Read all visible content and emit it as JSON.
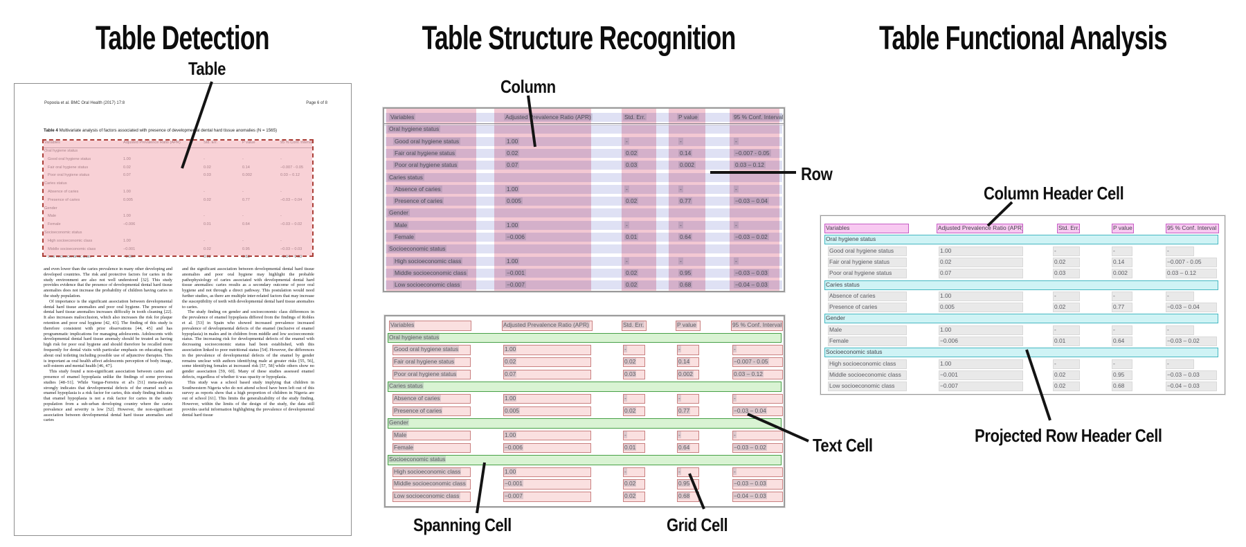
{
  "titles": {
    "detection": "Table Detection",
    "structure": "Table Structure Recognition",
    "functional": "Table Functional Analysis"
  },
  "callouts": {
    "table": "Table",
    "column": "Column",
    "row": "Row",
    "spanning_cell": "Spanning Cell",
    "grid_cell": "Grid Cell",
    "text_cell": "Text Cell",
    "column_header_cell": "Column Header Cell",
    "projected_row_header_cell": "Projected Row Header Cell"
  },
  "document": {
    "header_left": "Popoola et al. BMC Oral Health  (2017) 17:8",
    "header_right": "Page 6 of 8",
    "caption_label": "Table 4",
    "caption_text": " Multivariate analysis of factors associated with presence of developmental dental hard tissue anomalies (N = 1565)",
    "body_left": [
      "and even lower than the caries prevalence in many other developing and developed countries. The risk and protective factors for caries in the study environment are also not well understood [32]. This study provides evidence that the presence of developmental dental hard tissue anomalies does not increase the probability of children having caries in the study population.",
      "Of importance is the significant association between developmental dental hard tissue anomalies and poor oral hygiene. The presence of dental hard tissue anomalies increases difficulty in tooth cleaning [22]. It also increases malocclusion, which also increases the risk for plaque retention and poor oral hygiene [42, 43]. The finding of this study is therefore consistent with prior observations [44, 45] and has programmatic implications for managing adolescents. Adolescents with developmental dental hard tissue anomaly should be treated as having high risk for poor oral hygiene and should therefore be recalled more frequently for dental visits with particular emphasis on educating them about oral toileting including possible use of adjunctive therapies. This is important as oral health affect adolescents perception of body image, self-esteem and mental health [46, 47].",
      "This study found a non-significant association between caries and presence of enamel hypoplasia unlike the findings of some previous studies [48–51]. While Vargas-Ferreira et al's [51] meta-analysis strongly indicates that developmental defects of the enamel such as enamel hypoplasia is a risk factor for caries, this study finding indicates that enamel hypoplasia is not a risk factor for caries in the study population from a sub-urban developing country where the caries prevalence and severity is low [52]. However, the non-significant association between developmental dental hard tissue anomalies and caries"
    ],
    "body_right": [
      "and the significant association between developmental dental hard tissue anomalies and poor oral hygiene may highlight the probable pathophysiology of caries associated with developmental dental hard tissue anomalies: caries results as a secondary outcome of poor oral hygiene and not through a direct pathway. This postulation would need further studies, as there are multiple inter-related factors that may increase the susceptibility of teeth with developmental dental hard tissue anomalies to caries.",
      "The study finding on gender and socioeconomic class differences in the prevalence of enamel hypoplasia differed from the findings of Robles et al. [53] in Spain who showed increased prevalence increased prevalence of developmental defects of the enamel (inclusive of enamel hypoplasia) in males and in children from middle and low socioeconomic status. The increasing risk for developmental defects of the enamel with decreasing socioeconomic status had been established, with this association linked to poor nutritional status [54]. However, the differences in the prevalence of developmental defects of the enamel by gender remains unclear with authors identifying male at greater risks [55, 56], some identifying females at increased risk [57, 58] while others show no gender association [59, 60]. Many of these studies assessed enamel defects, regardless of whether it was opacity or hypoplasia.",
      "This study was a school based study implying that children in Southwestern Nigeria who do not attend school have been left out of this survey as reports show that a high proportion of children in Nigeria are out of school [61]. This limits the generalizability of the study finding. However, within the limits of the design of the study, the data still provides useful information highlighting the prevalence of developmental dental hard tissue"
    ]
  },
  "table": {
    "columns": [
      "Variables",
      "Adjusted Prevalence Ratio (APR)",
      "Std. Err.",
      "P value",
      "95 % Conf. Interval"
    ],
    "sections": [
      {
        "header": "Oral hygiene status",
        "rows": [
          [
            "Good oral hygiene status",
            "1.00",
            "-",
            "-",
            "-"
          ],
          [
            "Fair oral hygiene status",
            "0.02",
            "0.02",
            "0.14",
            "−0.007 - 0.05"
          ],
          [
            "Poor oral hygiene status",
            "0.07",
            "0.03",
            "0.002",
            "0.03 – 0.12"
          ]
        ]
      },
      {
        "header": "Caries status",
        "rows": [
          [
            "Absence of caries",
            "1.00",
            "-",
            "-",
            "-"
          ],
          [
            "Presence of caries",
            "0.005",
            "0.02",
            "0.77",
            "−0.03 – 0.04"
          ]
        ]
      },
      {
        "header": "Gender",
        "rows": [
          [
            "Male",
            "1.00",
            "-",
            "-",
            "-"
          ],
          [
            "Female",
            "−0.006",
            "0.01",
            "0.64",
            "−0.03 – 0.02"
          ]
        ]
      },
      {
        "header": "Socioeconomic status",
        "rows": [
          [
            "High socioeconomic class",
            "1.00",
            "-",
            "-",
            "-"
          ],
          [
            "Middle socioeconomic class",
            "−0.001",
            "0.02",
            "0.95",
            "−0.03 – 0.03"
          ],
          [
            "Low socioeconomic class",
            "−0.007",
            "0.02",
            "0.68",
            "−0.04 – 0.03"
          ]
        ]
      }
    ]
  },
  "colors": {
    "row_band": "#dfe1f4",
    "column_band": "#f3c8d3",
    "cell_fill": "#fae0e0",
    "cell_border": "#c98080",
    "spanning_fill": "#d9f3d3",
    "spanning_border": "#46a046",
    "header_cell_fill": "#f8c9f1",
    "header_cell_border": "#c45cc4",
    "projected_fill": "#cff3f5",
    "projected_border": "#44b7c1",
    "gray_cell": "#e9e9e9",
    "detection_fill": "#f2a6b0",
    "detection_border": "#aa3d36",
    "line": "#141414"
  }
}
